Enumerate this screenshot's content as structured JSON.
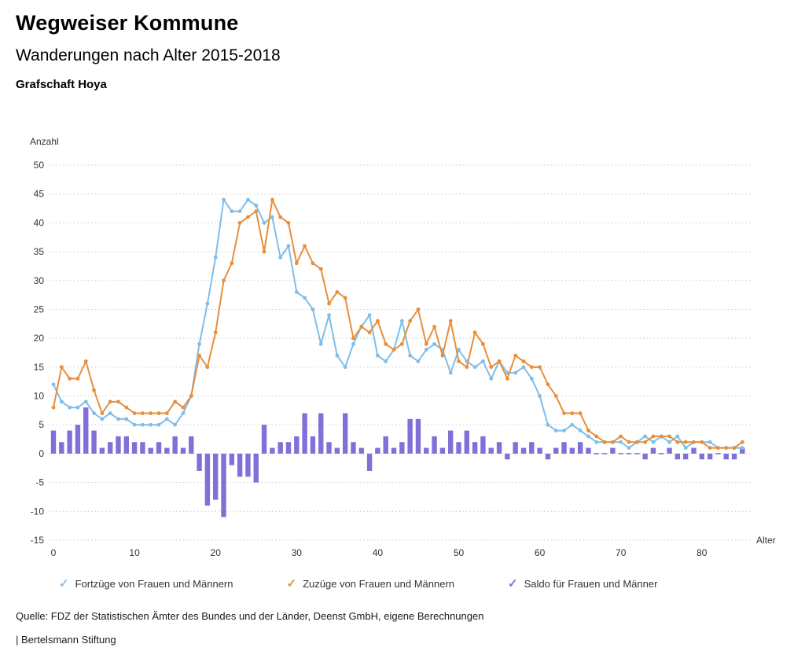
{
  "header": {
    "title": "Wegweiser Kommune",
    "subtitle": "Wanderungen nach Alter 2015-2018",
    "region": "Grafschaft Hoya"
  },
  "icons": {
    "checkmark": "✓"
  },
  "chart_data": {
    "type": "line",
    "title": "Wanderungen nach Alter 2015-2018",
    "xlabel": "Alter",
    "ylabel": "Anzahl",
    "xlim": [
      0,
      86
    ],
    "ylim": [
      -15,
      50
    ],
    "ytick_step": 5,
    "xticks": [
      0,
      10,
      20,
      30,
      40,
      50,
      60,
      70,
      80
    ],
    "grid": true,
    "legend_position": "bottom",
    "x": [
      0,
      1,
      2,
      3,
      4,
      5,
      6,
      7,
      8,
      9,
      10,
      11,
      12,
      13,
      14,
      15,
      16,
      17,
      18,
      19,
      20,
      21,
      22,
      23,
      24,
      25,
      26,
      27,
      28,
      29,
      30,
      31,
      32,
      33,
      34,
      35,
      36,
      37,
      38,
      39,
      40,
      41,
      42,
      43,
      44,
      45,
      46,
      47,
      48,
      49,
      50,
      51,
      52,
      53,
      54,
      55,
      56,
      57,
      58,
      59,
      60,
      61,
      62,
      63,
      64,
      65,
      66,
      67,
      68,
      69,
      70,
      71,
      72,
      73,
      74,
      75,
      76,
      77,
      78,
      79,
      80,
      81,
      82,
      83,
      84,
      85
    ],
    "series": [
      {
        "name": "Fortzüge von Frauen und Männern",
        "type": "line",
        "color": "#7FBEE9",
        "values": [
          12,
          9,
          8,
          8,
          9,
          7,
          6,
          7,
          6,
          6,
          5,
          5,
          5,
          5,
          6,
          5,
          7,
          10,
          19,
          26,
          34,
          44,
          42,
          42,
          44,
          43,
          40,
          41,
          34,
          36,
          28,
          27,
          25,
          19,
          24,
          17,
          15,
          19,
          22,
          24,
          17,
          16,
          18,
          23,
          17,
          16,
          18,
          19,
          18,
          14,
          18,
          16,
          15,
          16,
          13,
          16,
          14,
          14,
          15,
          13,
          10,
          5,
          4,
          4,
          5,
          4,
          3,
          2,
          2,
          2,
          2,
          1,
          2,
          3,
          2,
          3,
          2,
          3,
          1,
          2,
          2,
          2,
          1,
          1,
          1,
          1
        ]
      },
      {
        "name": "Zuzüge von Frauen und Männern",
        "type": "line",
        "color": "#E78F3B",
        "values": [
          8,
          15,
          13,
          13,
          16,
          11,
          7,
          9,
          9,
          8,
          7,
          7,
          7,
          7,
          7,
          9,
          8,
          10,
          17,
          15,
          21,
          30,
          33,
          40,
          41,
          42,
          35,
          44,
          41,
          40,
          33,
          36,
          33,
          32,
          26,
          28,
          27,
          20,
          22,
          21,
          23,
          19,
          18,
          19,
          23,
          25,
          19,
          22,
          17,
          23,
          16,
          15,
          21,
          19,
          15,
          16,
          13,
          17,
          16,
          15,
          15,
          12,
          10,
          7,
          7,
          7,
          4,
          3,
          2,
          2,
          3,
          2,
          2,
          2,
          3,
          3,
          3,
          2,
          2,
          2,
          2,
          1,
          1,
          1,
          1,
          2
        ]
      },
      {
        "name": "Saldo für Frauen und Männer",
        "type": "bar",
        "color": "#8070D8",
        "values": [
          4,
          2,
          4,
          5,
          8,
          4,
          1,
          2,
          3,
          3,
          2,
          2,
          1,
          2,
          1,
          3,
          1,
          3,
          -3,
          -9,
          -8,
          -11,
          -2,
          -4,
          -4,
          -5,
          5,
          1,
          2,
          2,
          3,
          7,
          3,
          7,
          2,
          1,
          7,
          2,
          1,
          -3,
          1,
          3,
          1,
          2,
          6,
          6,
          1,
          3,
          1,
          4,
          2,
          4,
          2,
          3,
          1,
          2,
          -1,
          2,
          1,
          2,
          1,
          -1,
          1,
          2,
          1,
          2,
          1,
          0,
          0,
          1,
          0,
          0,
          0,
          -1,
          1,
          0,
          1,
          -1,
          -1,
          1,
          -1,
          -1,
          0,
          -1,
          -1,
          1
        ]
      }
    ]
  },
  "source": "Quelle: FDZ der Statistischen Ämter des Bundes und der Länder, Deenst GmbH, eigene Berechnungen",
  "footer": "| Bertelsmann Stiftung"
}
